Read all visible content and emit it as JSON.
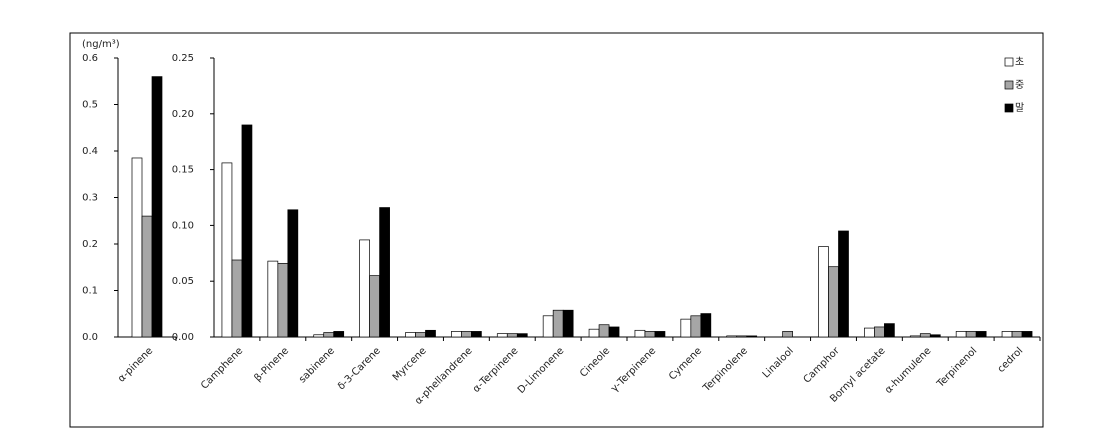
{
  "chart_data": [
    {
      "type": "bar",
      "y_label": "(ng/m³)",
      "categories": [
        "α-pinene"
      ],
      "series": [
        {
          "color": "#ffffff",
          "values": [
            0.385
          ]
        },
        {
          "color": "#a6a6a6",
          "values": [
            0.26
          ]
        },
        {
          "color": "#000000",
          "values": [
            0.56
          ]
        }
      ],
      "ylim": [
        0,
        0.6
      ],
      "yticks": [
        {
          "value": 0,
          "label": "0.0"
        },
        0.1,
        0.2,
        0.3,
        0.4,
        0.5,
        0.6
      ]
    },
    {
      "type": "bar",
      "categories": [
        "Camphene",
        "β-Pinene",
        "sabinene",
        "δ-3-Carene",
        "Myrcene",
        "α-phellandrene",
        "α-Terpinene",
        "D-Limonene",
        "Cineole",
        "γ-Terpinene",
        "Cymene",
        "Terpinolene",
        "Linalool",
        "Camphor",
        "Bornyl acetate",
        "α-humulene",
        "Terpinenol",
        "cedrol"
      ],
      "series": [
        {
          "name": "초",
          "color": "#ffffff",
          "values": [
            0.156,
            0.068,
            0.002,
            0.087,
            0.004,
            0.005,
            0.003,
            0.019,
            0.007,
            0.006,
            0.016,
            0.001,
            0,
            0.081,
            0.008,
            0.001,
            0.005,
            0.005
          ]
        },
        {
          "name": "중",
          "color": "#a6a6a6",
          "values": [
            0.069,
            0.066,
            0.004,
            0.055,
            0.004,
            0.005,
            0.003,
            0.024,
            0.011,
            0.005,
            0.019,
            0.001,
            0.005,
            0.063,
            0.009,
            0.003,
            0.005,
            0.005
          ]
        },
        {
          "name": "말",
          "color": "#000000",
          "values": [
            0.19,
            0.114,
            0.005,
            0.116,
            0.006,
            0.005,
            0.003,
            0.024,
            0.009,
            0.005,
            0.021,
            0.001,
            0,
            0.095,
            0.012,
            0.002,
            0.005,
            0.005
          ]
        }
      ],
      "ylim": [
        0,
        0.25
      ],
      "yticks": [
        {
          "value": 0,
          "label": "0.00"
        },
        {
          "value": 0.05,
          "label": "0.05"
        },
        {
          "value": 0.1,
          "label": "0.10"
        },
        {
          "value": 0.15,
          "label": "0.15"
        },
        {
          "value": 0.2,
          "label": "0.20"
        },
        {
          "value": 0.25,
          "label": "0.25"
        }
      ],
      "legend": "upper right"
    }
  ]
}
